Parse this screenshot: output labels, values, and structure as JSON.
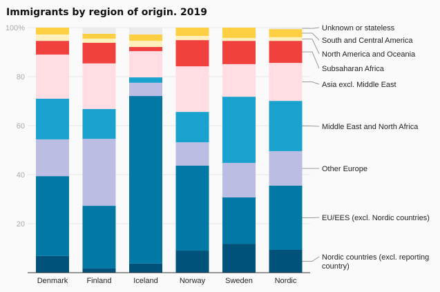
{
  "chart_data": {
    "type": "bar",
    "stacked": true,
    "title": "Immigrants by region of origin. 2019",
    "xlabel": "",
    "ylabel": "",
    "ylim": [
      0,
      100
    ],
    "yticks": [
      20,
      40,
      60,
      80,
      100
    ],
    "ytick_labels": [
      "20",
      "40",
      "60",
      "80",
      "100%"
    ],
    "grid": true,
    "legend_placement": "right (direct labels)",
    "categories": [
      "Denmark",
      "Finland",
      "Iceland",
      "Norway",
      "Sweden",
      "Nordic"
    ],
    "series": [
      {
        "name": "Nordic countries (excl. reporting country)",
        "color": "#00527a",
        "values": [
          6.8,
          1.7,
          3.7,
          9.0,
          11.8,
          9.3
        ]
      },
      {
        "name": "EU/EES (excl. Nordic countries)",
        "color": "#0279a5",
        "values": [
          32.6,
          25.6,
          68.4,
          34.7,
          18.9,
          26.2
        ]
      },
      {
        "name": "Other Europe",
        "color": "#bbbee2",
        "values": [
          15.0,
          27.3,
          5.4,
          9.5,
          14.1,
          14.1
        ]
      },
      {
        "name": "Middle East and North Africa",
        "color": "#1aa2ce",
        "values": [
          16.6,
          12.2,
          2.2,
          12.4,
          27.0,
          20.5
        ]
      },
      {
        "name": "Asia excl. Middle East",
        "color": "#ffdde3",
        "values": [
          18.0,
          18.6,
          10.7,
          18.6,
          13.3,
          15.5
        ]
      },
      {
        "name": "Subsaharan Africa",
        "color": "#f0413e",
        "values": [
          5.6,
          8.4,
          1.7,
          10.7,
          9.5,
          9.0
        ]
      },
      {
        "name": "North America and Oceania",
        "color": "#fff0bd",
        "values": [
          2.6,
          1.7,
          2.5,
          1.7,
          1.2,
          1.5
        ]
      },
      {
        "name": "South and Central America",
        "color": "#ffcf43",
        "values": [
          2.8,
          2.0,
          2.6,
          3.4,
          4.2,
          3.3
        ]
      },
      {
        "name": "Unknown or stateless",
        "color": "#ebebeb",
        "values": [
          0,
          2.5,
          2.8,
          0,
          0,
          0.6
        ]
      }
    ]
  }
}
